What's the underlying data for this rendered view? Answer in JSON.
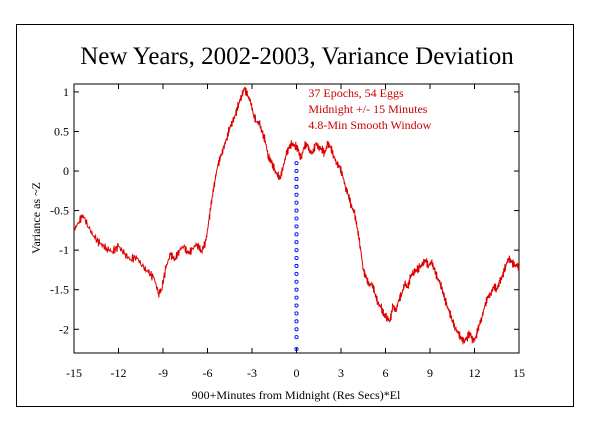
{
  "chart_data": {
    "type": "line",
    "title": "New Years, 2002-2003, Variance Deviation",
    "xlabel": "900+Minutes from Midnight (Res Secs)*El",
    "ylabel": "Variance as ~Z",
    "xlim": [
      -15,
      15
    ],
    "ylim": [
      -2.3,
      1.1
    ],
    "xticks": [
      -15,
      -12,
      -9,
      -6,
      -3,
      0,
      3,
      6,
      9,
      12,
      15
    ],
    "xtick_labels": [
      "-15",
      "-12",
      "-9",
      "-6",
      "-3",
      "0",
      "3",
      "6",
      "9",
      "12",
      "15"
    ],
    "yticks": [
      1,
      0.5,
      0,
      -0.5,
      -1,
      -1.5,
      -2
    ],
    "ytick_labels": [
      "1",
      "0.5",
      "0",
      "-0.5",
      "-1",
      "-1.5",
      "-2"
    ],
    "annotations": [
      "37 Epochs, 54 Eggs",
      "Midnight +/- 15 Minutes",
      "4.8-Min Smooth Window"
    ],
    "series": [
      {
        "color": "#dd0000",
        "x": [
          -15,
          -14.7,
          -14.4,
          -14,
          -13.6,
          -13.2,
          -12.8,
          -12.4,
          -12,
          -11.6,
          -11.2,
          -10.8,
          -10.4,
          -10,
          -9.6,
          -9.3,
          -9.1,
          -8.8,
          -8.5,
          -8.2,
          -7.9,
          -7.6,
          -7.3,
          -7,
          -6.7,
          -6.4,
          -6.1,
          -5.9,
          -5.7,
          -5.5,
          -5.3,
          -5.1,
          -4.9,
          -4.7,
          -4.5,
          -4.3,
          -4.1,
          -3.9,
          -3.7,
          -3.5,
          -3.3,
          -3.1,
          -2.9,
          -2.7,
          -2.5,
          -2.3,
          -2.1,
          -1.9,
          -1.7,
          -1.5,
          -1.3,
          -1.1,
          -0.9,
          -0.7,
          -0.5,
          -0.3,
          -0.1,
          0.1,
          0.3,
          0.5,
          0.7,
          0.9,
          1.1,
          1.3,
          1.5,
          1.7,
          1.9,
          2.1,
          2.3,
          2.5,
          2.7,
          2.9,
          3.1,
          3.3,
          3.5,
          3.7,
          3.9,
          4.1,
          4.3,
          4.5,
          4.7,
          4.9,
          5.1,
          5.3,
          5.5,
          5.7,
          5.9,
          6.1,
          6.3,
          6.5,
          6.7,
          6.9,
          7.1,
          7.3,
          7.5,
          7.7,
          7.9,
          8.1,
          8.3,
          8.5,
          8.7,
          8.9,
          9.1,
          9.3,
          9.5,
          9.7,
          9.9,
          10.1,
          10.3,
          10.5,
          10.7,
          10.9,
          11.1,
          11.3,
          11.5,
          11.7,
          11.9,
          12.1,
          12.3,
          12.5,
          12.7,
          12.9,
          13.1,
          13.3,
          13.5,
          13.7,
          13.9,
          14.1,
          14.3,
          14.5,
          14.7,
          14.9,
          15
        ],
        "y": [
          -0.75,
          -0.65,
          -0.55,
          -0.72,
          -0.85,
          -0.92,
          -0.98,
          -1.02,
          -0.95,
          -1.05,
          -1.12,
          -1.08,
          -1.2,
          -1.28,
          -1.35,
          -1.55,
          -1.5,
          -1.22,
          -1.05,
          -1.12,
          -1.0,
          -0.95,
          -1.05,
          -0.98,
          -0.92,
          -1.02,
          -0.88,
          -0.62,
          -0.35,
          -0.12,
          0.08,
          0.18,
          0.3,
          0.42,
          0.55,
          0.62,
          0.72,
          0.85,
          0.95,
          1.05,
          0.95,
          0.88,
          0.72,
          0.62,
          0.6,
          0.48,
          0.38,
          0.18,
          0.12,
          0.02,
          -0.05,
          -0.08,
          0.05,
          0.2,
          0.3,
          0.35,
          0.32,
          0.28,
          0.15,
          0.3,
          0.35,
          0.25,
          0.22,
          0.35,
          0.3,
          0.28,
          0.22,
          0.35,
          0.3,
          0.2,
          0.1,
          0.05,
          -0.05,
          -0.2,
          -0.3,
          -0.45,
          -0.52,
          -0.72,
          -0.95,
          -1.25,
          -1.35,
          -1.45,
          -1.42,
          -1.55,
          -1.68,
          -1.72,
          -1.82,
          -1.85,
          -1.9,
          -1.7,
          -1.78,
          -1.62,
          -1.55,
          -1.42,
          -1.48,
          -1.32,
          -1.28,
          -1.25,
          -1.22,
          -1.18,
          -1.12,
          -1.2,
          -1.15,
          -1.25,
          -1.35,
          -1.42,
          -1.55,
          -1.68,
          -1.78,
          -1.88,
          -1.98,
          -2.05,
          -2.12,
          -2.15,
          -2.1,
          -2.05,
          -2.15,
          -2.1,
          -1.95,
          -1.85,
          -1.7,
          -1.6,
          -1.55,
          -1.45,
          -1.5,
          -1.4,
          -1.32,
          -1.2,
          -1.1,
          -1.15,
          -1.2,
          -1.18,
          -1.25
        ]
      }
    ],
    "marker_series": {
      "color": "#0000ff",
      "x": [
        0,
        0,
        0,
        0,
        0,
        0,
        0,
        0,
        0,
        0,
        0,
        0,
        0,
        0,
        0,
        0,
        0,
        0,
        0,
        0,
        0,
        0,
        0,
        0
      ],
      "y": [
        0.1,
        0.0,
        -0.1,
        -0.2,
        -0.3,
        -0.4,
        -0.5,
        -0.6,
        -0.7,
        -0.8,
        -0.9,
        -1.0,
        -1.1,
        -1.2,
        -1.3,
        -1.4,
        -1.5,
        -1.6,
        -1.7,
        -1.8,
        -1.9,
        -2.0,
        -2.1,
        -2.25
      ]
    },
    "grid": false,
    "legend": "none"
  }
}
